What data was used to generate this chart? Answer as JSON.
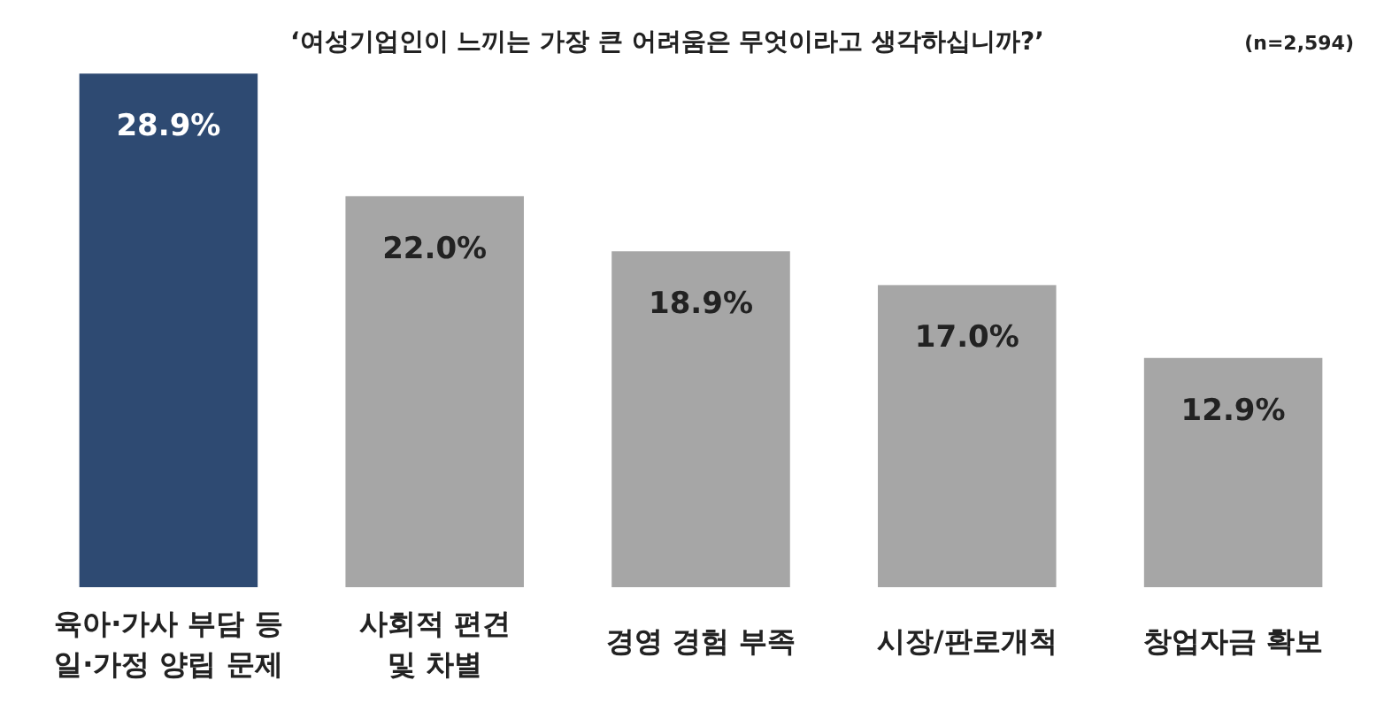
{
  "chart_data": {
    "type": "bar",
    "title": "‘여성기업인이 느끼는 가장 큰 어려움은 무엇이라고 생각하십니까?’",
    "annotations": [
      "(n=2,594)"
    ],
    "categories": [
      "육아·가사 부담 등\n일·가정 양립 문제",
      "사회적 편견\n및 차별",
      "경영 경험 부족",
      "시장/판로개척",
      "창업자금 확보"
    ],
    "values": [
      28.9,
      22.0,
      18.9,
      17.0,
      12.9
    ],
    "colors": [
      "#2e4a72",
      "#a6a6a6",
      "#a6a6a6",
      "#a6a6a6",
      "#a6a6a6"
    ],
    "value_labels": [
      "28.9%",
      "22.0%",
      "18.9%",
      "17.0%",
      "12.9%"
    ],
    "tick_labels": "x"
  }
}
